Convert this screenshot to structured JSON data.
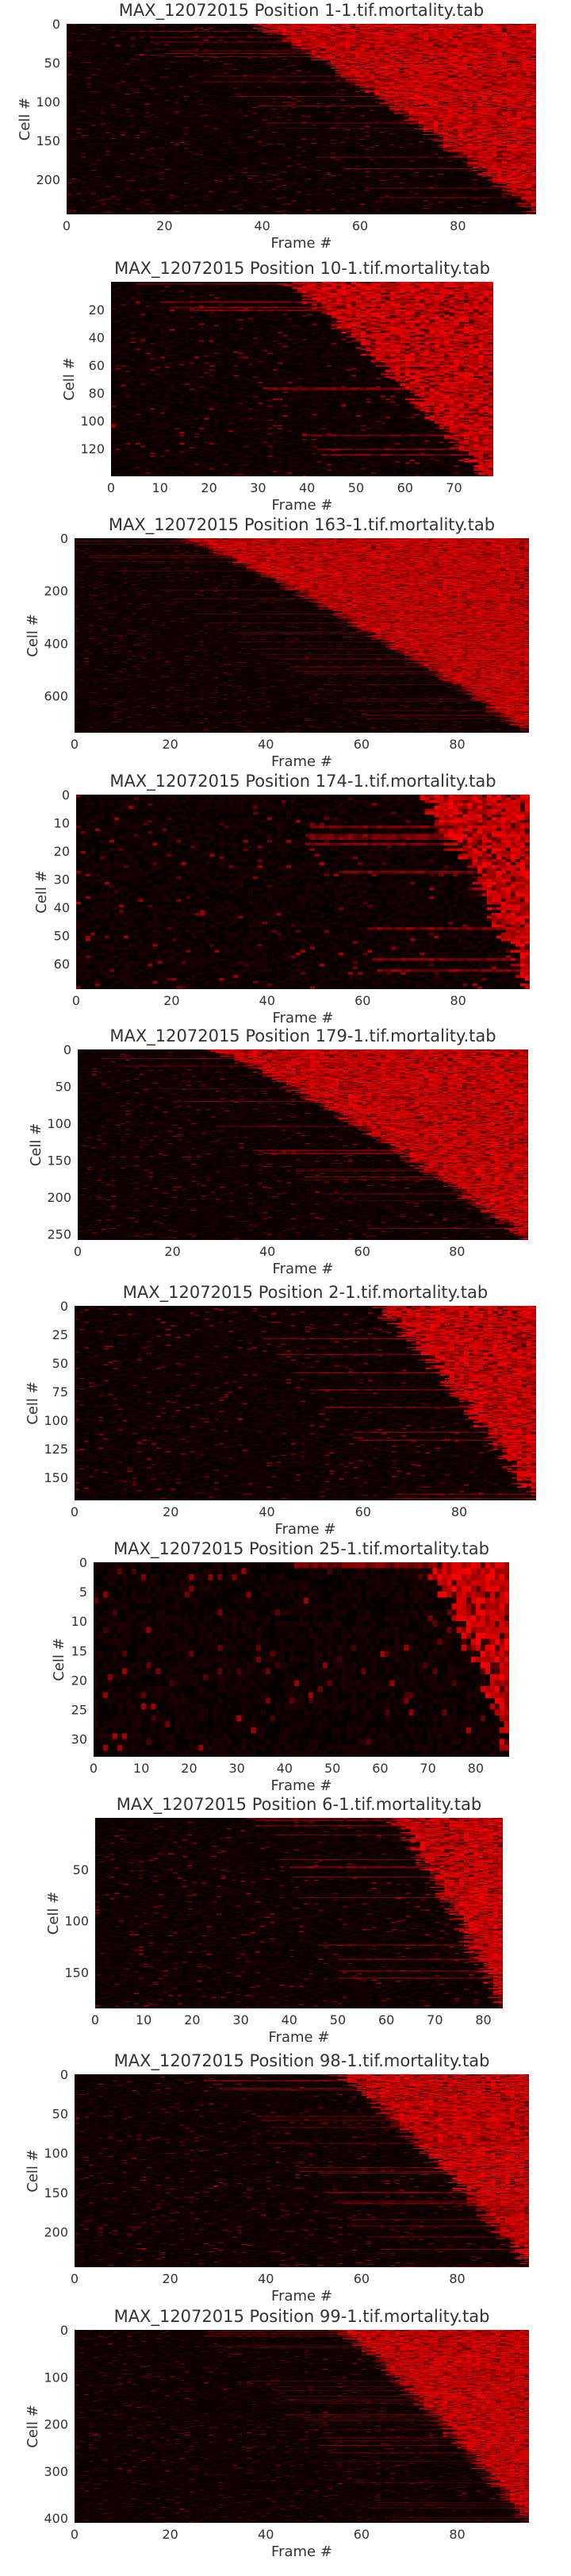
{
  "chart_data": [
    {
      "type": "heatmap",
      "title": "MAX_12072015 Position 1-1.tif.mortality.tab",
      "xlabel": "Frame #",
      "ylabel": "Cell #",
      "xticks": [
        "0",
        "20",
        "40",
        "60",
        "80"
      ],
      "xtick_values": [
        0,
        20,
        40,
        60,
        80
      ],
      "yticks": [
        "0",
        "50",
        "100",
        "150",
        "200"
      ],
      "ytick_values": [
        0,
        50,
        100,
        150,
        200
      ],
      "xlim": [
        0,
        96
      ],
      "ylim": [
        0,
        245
      ],
      "n_frames": 96,
      "n_cells": 245,
      "death_frame_range": [
        38,
        96
      ],
      "colormap": [
        "#000000",
        "#ff0000"
      ]
    },
    {
      "type": "heatmap",
      "title": "MAX_12072015 Position 10-1.tif.mortality.tab",
      "xlabel": "Frame #",
      "ylabel": "Cell #",
      "xticks": [
        "0",
        "10",
        "20",
        "30",
        "40",
        "50",
        "60",
        "70"
      ],
      "xtick_values": [
        0,
        10,
        20,
        30,
        40,
        50,
        60,
        70
      ],
      "yticks": [
        "20",
        "40",
        "60",
        "80",
        "100",
        "120"
      ],
      "ytick_values": [
        20,
        40,
        60,
        80,
        100,
        120
      ],
      "xlim": [
        0,
        78
      ],
      "ylim": [
        0,
        140
      ],
      "n_frames": 78,
      "n_cells": 140,
      "death_frame_range": [
        35,
        76
      ],
      "colormap": [
        "#000000",
        "#ff0000"
      ]
    },
    {
      "type": "heatmap",
      "title": "MAX_12072015 Position 163-1.tif.mortality.tab",
      "xlabel": "Frame #",
      "ylabel": "Cell #",
      "xticks": [
        "0",
        "20",
        "40",
        "60",
        "80"
      ],
      "xtick_values": [
        0,
        20,
        40,
        60,
        80
      ],
      "yticks": [
        "0",
        "200",
        "400",
        "600"
      ],
      "ytick_values": [
        0,
        200,
        400,
        600
      ],
      "xlim": [
        0,
        95
      ],
      "ylim": [
        0,
        740
      ],
      "n_frames": 95,
      "n_cells": 740,
      "death_frame_range": [
        22,
        95
      ],
      "colormap": [
        "#000000",
        "#ff0000"
      ]
    },
    {
      "type": "heatmap",
      "title": "MAX_12072015 Position 174-1.tif.mortality.tab",
      "xlabel": "Frame #",
      "ylabel": "Cell #",
      "xticks": [
        "0",
        "20",
        "40",
        "60",
        "80"
      ],
      "xtick_values": [
        0,
        20,
        40,
        60,
        80
      ],
      "yticks": [
        "0",
        "10",
        "20",
        "30",
        "40",
        "50",
        "60"
      ],
      "ytick_values": [
        0,
        10,
        20,
        30,
        40,
        50,
        60
      ],
      "xlim": [
        0,
        95
      ],
      "ylim": [
        0,
        69
      ],
      "n_frames": 95,
      "n_cells": 69,
      "death_frame_range": [
        72,
        95
      ],
      "colormap": [
        "#000000",
        "#ff0000"
      ]
    },
    {
      "type": "heatmap",
      "title": "MAX_12072015 Position 179-1.tif.mortality.tab",
      "xlabel": "Frame #",
      "ylabel": "Cell #",
      "xticks": [
        "0",
        "20",
        "40",
        "60",
        "80"
      ],
      "xtick_values": [
        0,
        20,
        40,
        60,
        80
      ],
      "yticks": [
        "0",
        "50",
        "100",
        "150",
        "200",
        "250"
      ],
      "ytick_values": [
        0,
        50,
        100,
        150,
        200,
        250
      ],
      "xlim": [
        0,
        95
      ],
      "ylim": [
        0,
        258
      ],
      "n_frames": 95,
      "n_cells": 258,
      "death_frame_range": [
        28,
        95
      ],
      "colormap": [
        "#000000",
        "#ff0000"
      ]
    },
    {
      "type": "heatmap",
      "title": "MAX_12072015 Position 2-1.tif.mortality.tab",
      "xlabel": "Frame #",
      "ylabel": "Cell #",
      "xticks": [
        "0",
        "20",
        "40",
        "60",
        "80"
      ],
      "xtick_values": [
        0,
        20,
        40,
        60,
        80
      ],
      "yticks": [
        "0",
        "25",
        "50",
        "75",
        "100",
        "125",
        "150"
      ],
      "ytick_values": [
        0,
        25,
        50,
        75,
        100,
        125,
        150
      ],
      "xlim": [
        0,
        96
      ],
      "ylim": [
        0,
        170
      ],
      "n_frames": 96,
      "n_cells": 170,
      "death_frame_range": [
        62,
        96
      ],
      "colormap": [
        "#000000",
        "#ff0000"
      ]
    },
    {
      "type": "heatmap",
      "title": "MAX_12072015 Position 25-1.tif.mortality.tab",
      "xlabel": "Frame #",
      "ylabel": "Cell #",
      "xticks": [
        "0",
        "10",
        "20",
        "30",
        "40",
        "50",
        "60",
        "70",
        "80"
      ],
      "xtick_values": [
        0,
        10,
        20,
        30,
        40,
        50,
        60,
        70,
        80
      ],
      "yticks": [
        "0",
        "5",
        "10",
        "15",
        "20",
        "25",
        "30"
      ],
      "ytick_values": [
        0,
        5,
        10,
        15,
        20,
        25,
        30
      ],
      "xlim": [
        0,
        87
      ],
      "ylim": [
        0,
        33
      ],
      "n_frames": 87,
      "n_cells": 33,
      "death_frame_range": [
        70,
        87
      ],
      "colormap": [
        "#000000",
        "#ff0000"
      ]
    },
    {
      "type": "heatmap",
      "title": "MAX_12072015 Position 6-1.tif.mortality.tab",
      "xlabel": "Frame #",
      "ylabel": "Cell #",
      "xticks": [
        "0",
        "10",
        "20",
        "30",
        "40",
        "50",
        "60",
        "70",
        "80"
      ],
      "xtick_values": [
        0,
        10,
        20,
        30,
        40,
        50,
        60,
        70,
        80
      ],
      "yticks": [
        "50",
        "100",
        "150"
      ],
      "ytick_values": [
        50,
        100,
        150
      ],
      "xlim": [
        0,
        84
      ],
      "ylim": [
        0,
        185
      ],
      "n_frames": 84,
      "n_cells": 185,
      "death_frame_range": [
        61,
        84
      ],
      "colormap": [
        "#000000",
        "#ff0000"
      ]
    },
    {
      "type": "heatmap",
      "title": "MAX_12072015 Position 98-1.tif.mortality.tab",
      "xlabel": "Frame #",
      "ylabel": "Cell #",
      "xticks": [
        "0",
        "20",
        "40",
        "60",
        "80"
      ],
      "xtick_values": [
        0,
        20,
        40,
        60,
        80
      ],
      "yticks": [
        "0",
        "50",
        "100",
        "150",
        "200"
      ],
      "ytick_values": [
        0,
        50,
        100,
        150,
        200
      ],
      "xlim": [
        0,
        95
      ],
      "ylim": [
        0,
        245
      ],
      "n_frames": 95,
      "n_cells": 245,
      "death_frame_range": [
        55,
        95
      ],
      "colormap": [
        "#000000",
        "#ff0000"
      ]
    },
    {
      "type": "heatmap",
      "title": "MAX_12072015 Position 99-1.tif.mortality.tab",
      "xlabel": "Frame #",
      "ylabel": "Cell #",
      "xticks": [
        "0",
        "20",
        "40",
        "60",
        "80"
      ],
      "xtick_values": [
        0,
        20,
        40,
        60,
        80
      ],
      "yticks": [
        "0",
        "100",
        "200",
        "300",
        "400"
      ],
      "ytick_values": [
        0,
        100,
        200,
        300,
        400
      ],
      "xlim": [
        0,
        95
      ],
      "ylim": [
        0,
        410
      ],
      "n_frames": 95,
      "n_cells": 410,
      "death_frame_range": [
        55,
        95
      ],
      "colormap": [
        "#000000",
        "#ff0000"
      ]
    }
  ]
}
